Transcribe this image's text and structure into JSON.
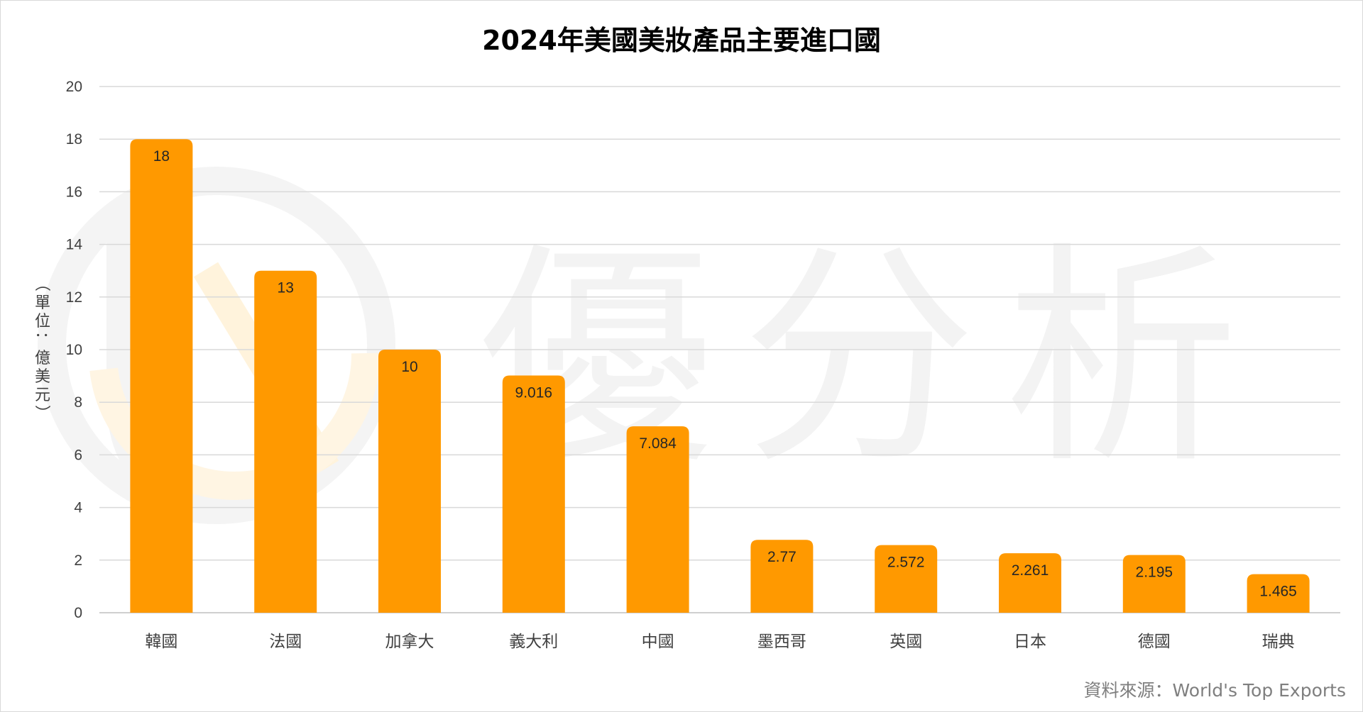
{
  "chart_data": {
    "type": "bar",
    "title": "2024年美國美妝產品主要進口國",
    "ylabel": "（單位：億美元）",
    "xlabel": "",
    "categories": [
      "韓國",
      "法國",
      "加拿大",
      "義大利",
      "中國",
      "墨西哥",
      "英國",
      "日本",
      "德國",
      "瑞典"
    ],
    "values": [
      18,
      13,
      10,
      9.016,
      7.084,
      2.77,
      2.572,
      2.261,
      2.195,
      1.465
    ],
    "data_labels": [
      "18",
      "13",
      "10",
      "9.016",
      "7.084",
      "2.77",
      "2.572",
      "2.261",
      "2.195",
      "1.465"
    ],
    "ylim": [
      0,
      20
    ],
    "yticks": [
      0,
      2,
      4,
      6,
      8,
      10,
      12,
      14,
      16,
      18,
      20
    ],
    "grid": true,
    "legend": "none",
    "bar_color": "#FF9900"
  },
  "source_text": "資料來源：World's Top Exports",
  "watermark": {
    "text": "優分析",
    "icon": "logo-icon",
    "color": "#f3f3f3",
    "accent": "#fff3dc"
  }
}
